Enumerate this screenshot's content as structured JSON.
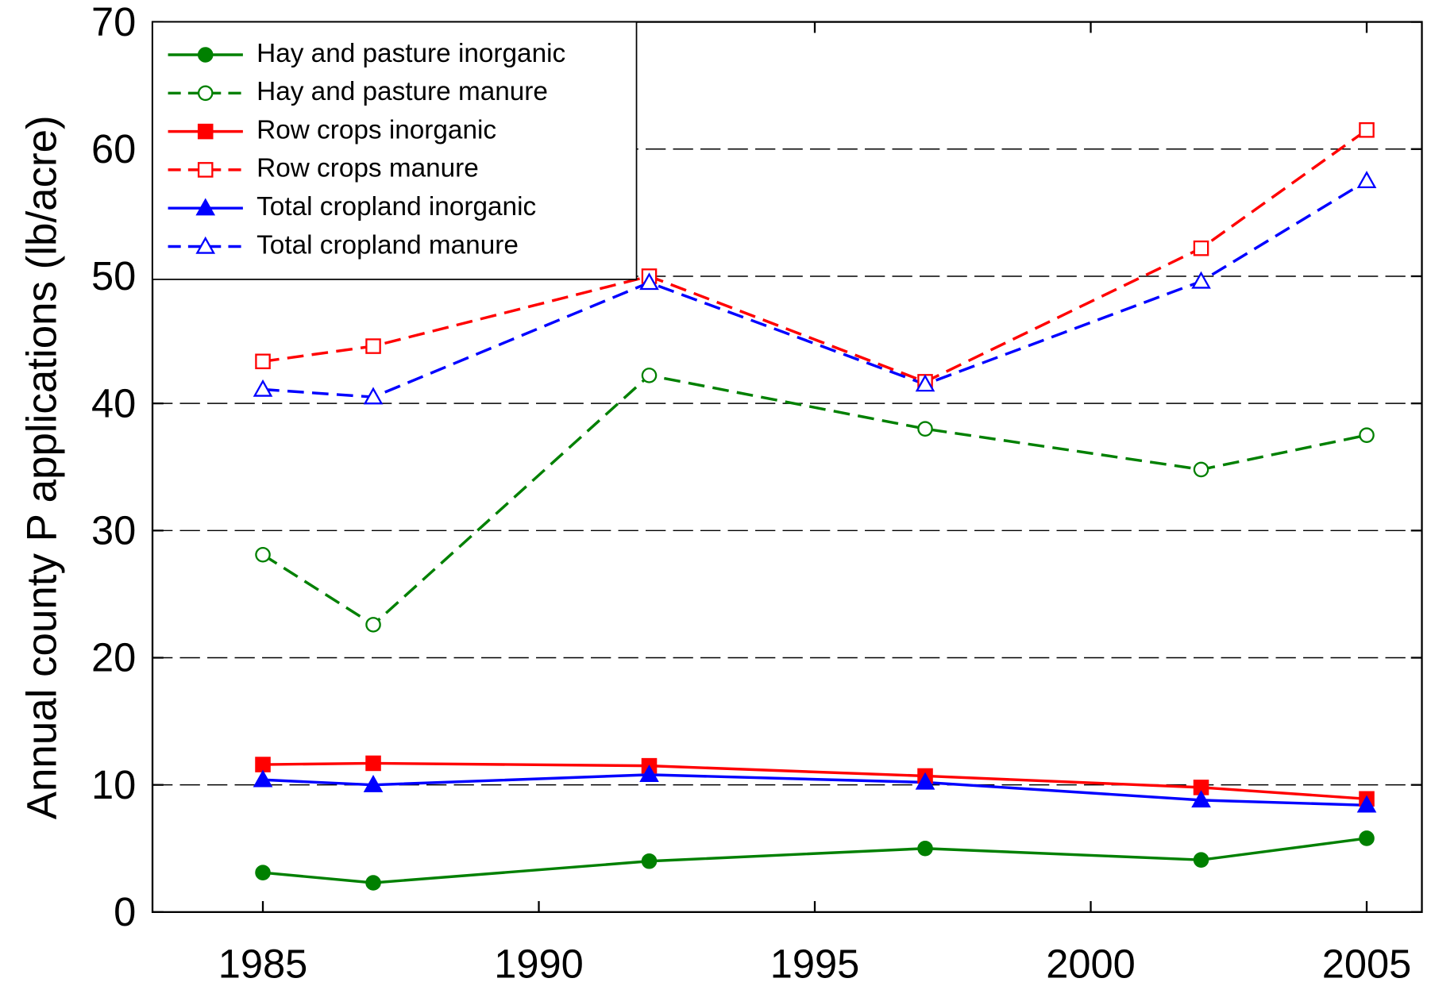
{
  "chart_data": {
    "type": "line",
    "y_label": "Annual county P applications (lb/acre)",
    "x": [
      1985,
      1987,
      1992,
      1997,
      2002,
      2005
    ],
    "series": [
      {
        "name": "Hay and pasture inorganic",
        "color": "#008000",
        "marker": "circle",
        "filled": true,
        "dashed": false,
        "values": [
          3.1,
          2.3,
          4.0,
          5.0,
          4.1,
          5.8
        ]
      },
      {
        "name": "Hay and pasture manure",
        "color": "#008000",
        "marker": "circle",
        "filled": false,
        "dashed": true,
        "values": [
          28.1,
          22.6,
          42.2,
          38.0,
          34.8,
          37.5
        ]
      },
      {
        "name": "Row crops inorganic",
        "color": "#ff0000",
        "marker": "square",
        "filled": true,
        "dashed": false,
        "values": [
          11.6,
          11.7,
          11.5,
          10.7,
          9.8,
          8.9
        ]
      },
      {
        "name": "Row crops manure",
        "color": "#ff0000",
        "marker": "square",
        "filled": false,
        "dashed": true,
        "values": [
          43.3,
          44.5,
          50.0,
          41.7,
          52.2,
          61.5
        ]
      },
      {
        "name": "Total cropland inorganic",
        "color": "#0000ff",
        "marker": "triangle",
        "filled": true,
        "dashed": false,
        "values": [
          10.4,
          10.0,
          10.8,
          10.2,
          8.8,
          8.4
        ]
      },
      {
        "name": "Total cropland manure",
        "color": "#0000ff",
        "marker": "triangle",
        "filled": false,
        "dashed": true,
        "values": [
          41.1,
          40.5,
          49.5,
          41.5,
          49.6,
          57.5
        ]
      }
    ],
    "xlim": [
      1983,
      2006
    ],
    "xticks": [
      1985,
      1990,
      1995,
      2000,
      2005
    ],
    "ylim": [
      0,
      70
    ],
    "yticks": [
      0,
      10,
      20,
      30,
      40,
      50,
      60,
      70
    ],
    "grid": true,
    "legend": "upper left"
  }
}
